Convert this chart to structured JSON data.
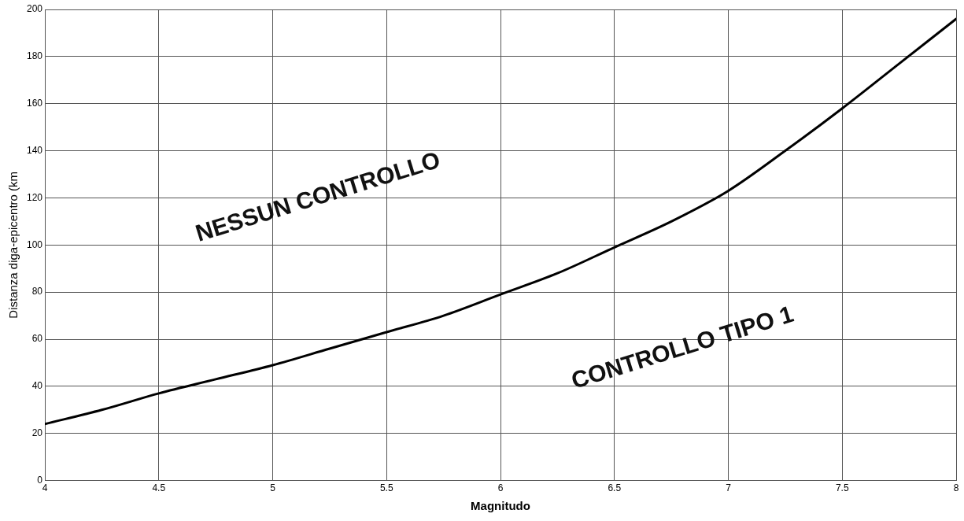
{
  "chart_data": {
    "type": "line",
    "xlabel": "Magnitudo",
    "ylabel": "Distanza diga-epicentro (km",
    "x": [
      4,
      4.25,
      4.5,
      4.75,
      5,
      5.25,
      5.5,
      5.75,
      6,
      6.25,
      6.5,
      6.75,
      7,
      7.25,
      7.5,
      7.75,
      8
    ],
    "series": [
      {
        "color": "#000000",
        "values": [
          24,
          30,
          37,
          43,
          49,
          56,
          63,
          70,
          79,
          88,
          99,
          110,
          123,
          140,
          158,
          177,
          196
        ]
      }
    ],
    "xlim": [
      4,
      8
    ],
    "xticks": [
      4,
      4.5,
      5,
      5.5,
      6,
      6.5,
      7,
      7.5,
      8
    ],
    "ylim": [
      0,
      200
    ],
    "yticks": [
      0,
      20,
      40,
      60,
      80,
      100,
      120,
      140,
      160,
      180,
      200
    ],
    "annotations": [
      "NESSUN CONTROLLO",
      "CONTROLLO TIPO 1"
    ],
    "grid": true,
    "legend": false,
    "marker": "none",
    "line_style": "solid"
  }
}
